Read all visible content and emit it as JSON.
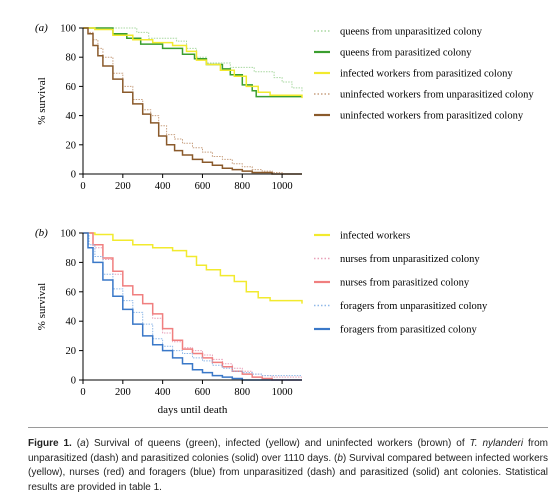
{
  "chart_data": [
    {
      "panel_label": "(a)",
      "type": "line",
      "ylabel": "% survival",
      "xlabel": "",
      "xlim": [
        0,
        1100
      ],
      "ylim": [
        0,
        100
      ],
      "xticks": [
        0,
        200,
        400,
        600,
        800,
        1000
      ],
      "yticks": [
        0,
        20,
        40,
        60,
        80,
        100
      ],
      "legend_position": "right",
      "series": [
        {
          "name": "queens from unparasitized colony",
          "color": "#a8d8a0",
          "style": "dash",
          "x": [
            0,
            110,
            220,
            270,
            330,
            470,
            520,
            570,
            620,
            680,
            740,
            800,
            860,
            920,
            960,
            1000,
            1050,
            1100
          ],
          "y": [
            100,
            100,
            100,
            97,
            93,
            91,
            86,
            80,
            76,
            76,
            73,
            73,
            70,
            70,
            66,
            63,
            59,
            56
          ]
        },
        {
          "name": "queens from parasitized colony",
          "color": "#3a9e2f",
          "style": "solid",
          "x": [
            0,
            90,
            150,
            220,
            290,
            400,
            500,
            560,
            620,
            700,
            740,
            800,
            850,
            870,
            1100
          ],
          "y": [
            100,
            100,
            96,
            93,
            89,
            86,
            82,
            79,
            75,
            72,
            68,
            61,
            57,
            53,
            53
          ]
        },
        {
          "name": "infected workers from parasitized colony",
          "color": "#f2ea2e",
          "style": "solid",
          "x": [
            0,
            60,
            150,
            250,
            350,
            450,
            520,
            570,
            620,
            690,
            760,
            820,
            880,
            940,
            1100
          ],
          "y": [
            100,
            99,
            95,
            92,
            90,
            88,
            84,
            78,
            75,
            71,
            67,
            60,
            56,
            54,
            52
          ]
        },
        {
          "name": "uninfected workers from unparasitized colony",
          "color": "#c8a080",
          "style": "dash",
          "x": [
            0,
            25,
            50,
            75,
            100,
            150,
            200,
            250,
            300,
            340,
            380,
            420,
            460,
            500,
            550,
            600,
            650,
            700,
            750,
            800,
            850,
            900,
            950,
            1000,
            1100
          ],
          "y": [
            100,
            97,
            92,
            86,
            80,
            69,
            60,
            51,
            44,
            40,
            33,
            27,
            24,
            21,
            18,
            15,
            12,
            10,
            7,
            5,
            3,
            2,
            1,
            0,
            0
          ]
        },
        {
          "name": "uninfected workers from parasitized colony",
          "color": "#8a5a2b",
          "style": "solid",
          "x": [
            0,
            25,
            50,
            75,
            100,
            150,
            200,
            250,
            300,
            340,
            380,
            420,
            460,
            500,
            550,
            600,
            650,
            700,
            750,
            800,
            850,
            900,
            950,
            1100
          ],
          "y": [
            100,
            96,
            88,
            81,
            74,
            65,
            56,
            48,
            41,
            35,
            26,
            20,
            16,
            13,
            10,
            8,
            6,
            4,
            3,
            2,
            1,
            1,
            0,
            0
          ]
        }
      ]
    },
    {
      "panel_label": "(b)",
      "type": "line",
      "ylabel": "% survival",
      "xlabel": "days until death",
      "xlim": [
        0,
        1100
      ],
      "ylim": [
        0,
        100
      ],
      "xticks": [
        0,
        200,
        400,
        600,
        800,
        1000
      ],
      "yticks": [
        0,
        20,
        40,
        60,
        80,
        100
      ],
      "legend_position": "right",
      "series": [
        {
          "name": "infected workers",
          "color": "#f2ea2e",
          "style": "solid",
          "x": [
            0,
            60,
            150,
            250,
            350,
            450,
            520,
            570,
            620,
            690,
            760,
            820,
            880,
            940,
            1100
          ],
          "y": [
            100,
            99,
            95,
            92,
            90,
            88,
            84,
            78,
            75,
            71,
            67,
            60,
            56,
            54,
            52
          ]
        },
        {
          "name": "nurses from unparasitized colony",
          "color": "#e8a0b8",
          "style": "dash",
          "x": [
            0,
            50,
            100,
            150,
            200,
            250,
            300,
            350,
            400,
            450,
            500,
            550,
            600,
            650,
            700,
            750,
            800,
            850,
            900,
            950,
            1000,
            1100
          ],
          "y": [
            100,
            90,
            82,
            72,
            64,
            58,
            52,
            42,
            32,
            26,
            22,
            20,
            17,
            14,
            11,
            8,
            6,
            4,
            3,
            2,
            2,
            2
          ]
        },
        {
          "name": "nurses from parasitized colony",
          "color": "#f07f7f",
          "style": "solid",
          "x": [
            0,
            50,
            100,
            150,
            200,
            250,
            300,
            350,
            400,
            450,
            500,
            550,
            600,
            650,
            700,
            750,
            800,
            850,
            900,
            950,
            1100
          ],
          "y": [
            100,
            92,
            83,
            74,
            64,
            58,
            52,
            45,
            35,
            27,
            21,
            18,
            15,
            12,
            9,
            6,
            4,
            2,
            1,
            0,
            0
          ]
        },
        {
          "name": "foragers from unparasitized colony",
          "color": "#8fb8e8",
          "style": "dash",
          "x": [
            0,
            30,
            60,
            100,
            150,
            200,
            250,
            300,
            350,
            400,
            450,
            500,
            550,
            600,
            650,
            700,
            750,
            800,
            850,
            900,
            1000,
            1100
          ],
          "y": [
            100,
            92,
            84,
            72,
            62,
            54,
            46,
            38,
            28,
            23,
            20,
            18,
            15,
            13,
            10,
            8,
            6,
            5,
            4,
            3,
            3,
            3
          ]
        },
        {
          "name": "foragers from parasitized colony",
          "color": "#3a78c8",
          "style": "solid",
          "x": [
            0,
            25,
            50,
            100,
            150,
            200,
            250,
            300,
            350,
            400,
            450,
            500,
            550,
            600,
            650,
            700,
            750,
            800,
            850,
            1100
          ],
          "y": [
            100,
            90,
            80,
            68,
            57,
            48,
            38,
            30,
            24,
            20,
            15,
            11,
            7,
            5,
            3,
            2,
            1,
            0,
            0,
            0
          ]
        }
      ]
    }
  ],
  "caption": {
    "label": "Figure 1.",
    "part1": "(",
    "a_label": "a",
    "part2": ") Survival of queens (green), infected (yellow) and uninfected workers (brown) of ",
    "species": "T. nylanderi",
    "part3": " from unparasitized (dash) and parasitized colonies (solid) over 1110 days. (",
    "b_label": "b",
    "part4": ") Survival compared between infected workers (yellow), nurses (red) and foragers (blue) from unparasitized (dash) and parasitized (solid) ant colonies. Statistical results are provided in table 1."
  }
}
